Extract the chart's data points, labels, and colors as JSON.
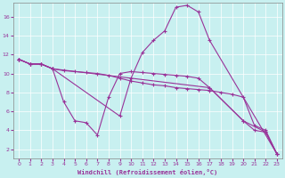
{
  "bg_color": "#c8f0f0",
  "line_color": "#993399",
  "marker": "+",
  "xlabel": "Windchill (Refroidissement éolien,°C)",
  "xlim": [
    -0.5,
    23.5
  ],
  "ylim": [
    1,
    17.5
  ],
  "yticks": [
    2,
    4,
    6,
    8,
    10,
    12,
    14,
    16
  ],
  "xticks": [
    0,
    1,
    2,
    3,
    4,
    5,
    6,
    7,
    8,
    9,
    10,
    11,
    12,
    13,
    14,
    15,
    16,
    17,
    18,
    19,
    20,
    21,
    22,
    23
  ],
  "lines": [
    {
      "x": [
        0,
        1,
        2,
        3,
        17,
        20,
        22,
        23
      ],
      "y": [
        11.5,
        11.0,
        11.0,
        10.5,
        8.5,
        5.0,
        3.8,
        1.5
      ]
    },
    {
      "x": [
        0,
        1,
        2,
        3,
        9,
        10,
        11,
        12,
        13,
        14,
        15,
        16,
        17,
        23
      ],
      "y": [
        11.5,
        11.0,
        11.0,
        10.5,
        5.5,
        9.5,
        12.2,
        13.5,
        14.5,
        17.0,
        17.2,
        16.5,
        13.5,
        1.5
      ]
    },
    {
      "x": [
        0,
        1,
        2,
        3,
        4,
        5,
        6,
        7,
        8,
        9,
        10,
        11,
        12,
        13,
        14,
        15,
        16,
        17,
        20,
        21,
        22,
        23
      ],
      "y": [
        11.5,
        11.0,
        11.0,
        10.5,
        7.0,
        5.0,
        4.8,
        3.5,
        7.5,
        10.0,
        10.2,
        10.1,
        10.0,
        9.9,
        9.8,
        9.7,
        9.5,
        8.5,
        5.0,
        4.0,
        3.8,
        1.5
      ]
    },
    {
      "x": [
        0,
        1,
        2,
        3,
        4,
        5,
        6,
        7,
        8,
        9,
        10,
        11,
        12,
        13,
        14,
        15,
        16,
        17,
        18,
        19,
        20,
        21,
        22,
        23
      ],
      "y": [
        11.5,
        11.0,
        11.0,
        10.5,
        10.3,
        10.2,
        10.1,
        10.0,
        9.8,
        9.5,
        9.2,
        9.0,
        8.8,
        8.7,
        8.5,
        8.4,
        8.3,
        8.2,
        8.0,
        7.8,
        7.5,
        4.5,
        4.0,
        1.5
      ]
    }
  ]
}
